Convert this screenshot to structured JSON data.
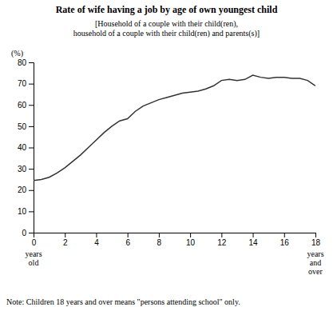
{
  "chart_data": {
    "type": "line",
    "title": "Rate of wife having a job by age of own youngest child",
    "subtitle": "[Household of a couple with their child(ren),\nhousehold of a couple with their child(ren) and parents(s)]",
    "note": "Note: Children 18 years and over means \"persons attending school\" only.",
    "ylabel": "(%)",
    "annotations": [
      {
        "text": "years\nold",
        "x": 0
      },
      {
        "text": "years\nand\nover",
        "x": 18
      }
    ],
    "x": [
      0,
      0.5,
      1,
      1.5,
      2,
      2.5,
      3,
      3.5,
      4,
      4.5,
      5,
      5.5,
      6,
      6.5,
      7,
      7.5,
      8,
      8.5,
      9,
      9.5,
      10,
      10.5,
      11,
      11.5,
      12,
      12.5,
      13,
      13.5,
      14,
      14.5,
      15,
      15.5,
      16,
      16.5,
      17,
      17.5,
      18
    ],
    "values": [
      24.5,
      25.0,
      26.0,
      28.0,
      30.5,
      33.5,
      36.5,
      40.0,
      43.5,
      47.0,
      50.0,
      52.5,
      53.5,
      57.0,
      59.5,
      61.0,
      62.5,
      63.5,
      64.5,
      65.5,
      66.0,
      66.5,
      67.5,
      69.0,
      71.5,
      72.0,
      71.5,
      72.0,
      74.0,
      73.0,
      72.5,
      73.0,
      73.0,
      72.5,
      72.5,
      71.5,
      69.0
    ],
    "color": "#333333",
    "xlim": [
      0,
      18
    ],
    "ylim": [
      0,
      80
    ],
    "xticks": [
      0,
      2,
      4,
      6,
      8,
      10,
      12,
      14,
      16,
      18
    ],
    "yticks": [
      0,
      10,
      20,
      30,
      40,
      50,
      60,
      70,
      80
    ],
    "grid": false
  }
}
